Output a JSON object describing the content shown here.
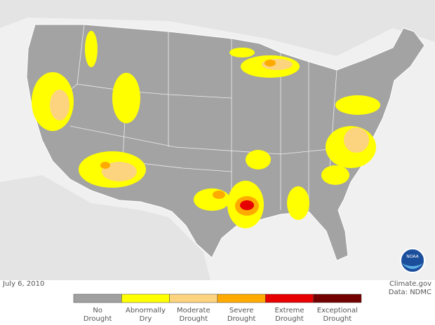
{
  "date": "July 6, 2010",
  "credit": "Climate.gov",
  "source": "Data: NDMC",
  "logo": "NOAA",
  "legend": [
    {
      "lines": [
        "No",
        "Drought"
      ],
      "color": "#a0a0a0"
    },
    {
      "lines": [
        "Abnormally",
        "Dry"
      ],
      "color": "#ffff00"
    },
    {
      "lines": [
        "Moderate",
        "Drought"
      ],
      "color": "#fcd37f"
    },
    {
      "lines": [
        "Severe",
        "Drought"
      ],
      "color": "#ffaa00"
    },
    {
      "lines": [
        "Extreme",
        "Drought"
      ],
      "color": "#e60000"
    },
    {
      "lines": [
        "Exceptional",
        "Drought"
      ],
      "color": "#730000"
    }
  ]
}
